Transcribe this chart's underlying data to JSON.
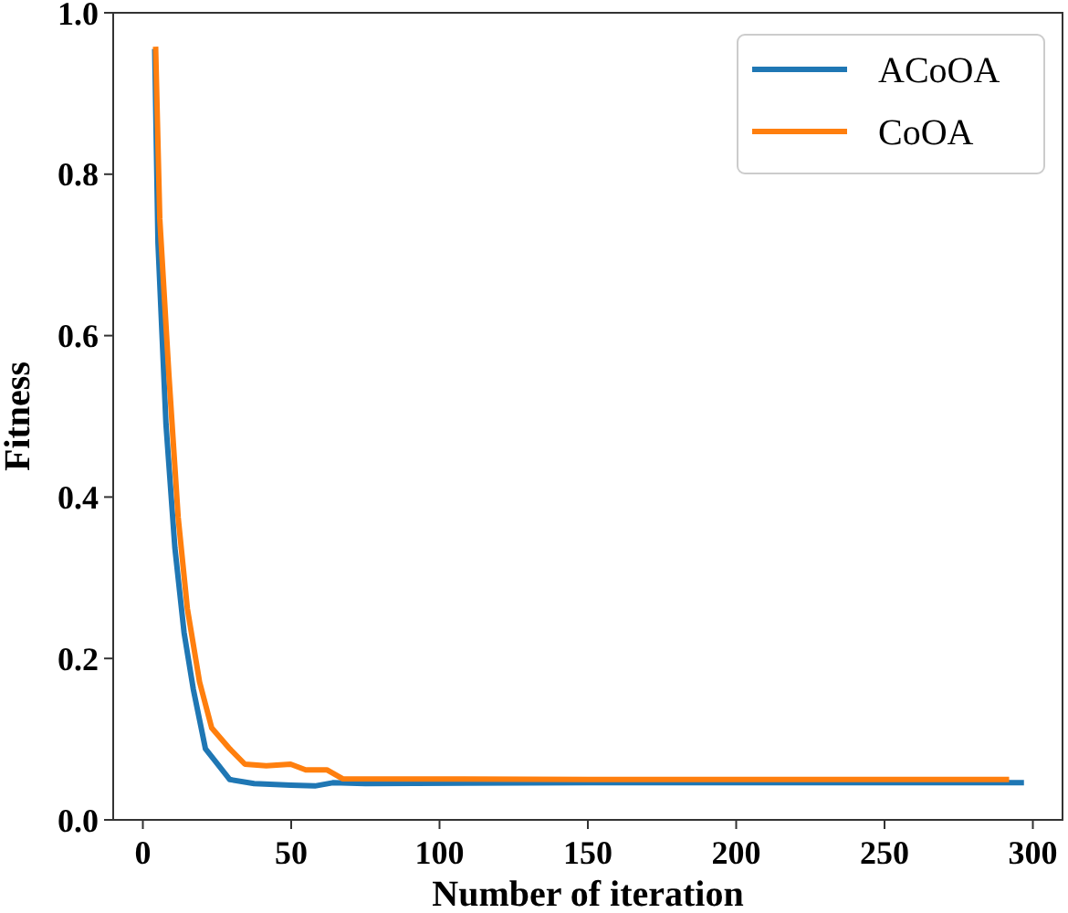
{
  "chart_data": {
    "type": "line",
    "xlabel": "Number of iteration",
    "ylabel": "Fitness",
    "xlim": [
      -10,
      310
    ],
    "xticks": [
      0,
      50,
      100,
      150,
      200,
      250,
      300
    ],
    "ylim": [
      0,
      1
    ],
    "yticks": [
      {
        "value": 0,
        "label": "0.0"
      },
      0.2,
      0.4,
      0.6,
      0.8,
      {
        "value": 1,
        "label": "1.0"
      }
    ],
    "grid": false,
    "legend": "top right",
    "line_style": "solid",
    "marker": "none",
    "series": [
      {
        "name": "ACoOA",
        "color": "#1f77b4",
        "x": [
          4,
          5.1,
          7.8,
          10.8,
          13.9,
          17,
          21.1,
          25,
          29.3,
          37.5,
          49.9,
          58,
          64,
          75,
          150,
          297
        ],
        "values": [
          0.955,
          0.715,
          0.49,
          0.337,
          0.232,
          0.162,
          0.088,
          0.07,
          0.05,
          0.045,
          0.043,
          0.042,
          0.046,
          0.045,
          0.046,
          0.046
        ]
      },
      {
        "name": "CoOA",
        "color": "#ff7f0e",
        "x": [
          4.3,
          5.7,
          8.8,
          11.9,
          15,
          19.1,
          23.2,
          29.3,
          34.4,
          41.6,
          49.8,
          54.9,
          62,
          67.3,
          150,
          292
        ],
        "values": [
          0.958,
          0.745,
          0.55,
          0.375,
          0.262,
          0.171,
          0.114,
          0.088,
          0.069,
          0.067,
          0.069,
          0.062,
          0.062,
          0.051,
          0.05,
          0.05
        ]
      }
    ]
  }
}
